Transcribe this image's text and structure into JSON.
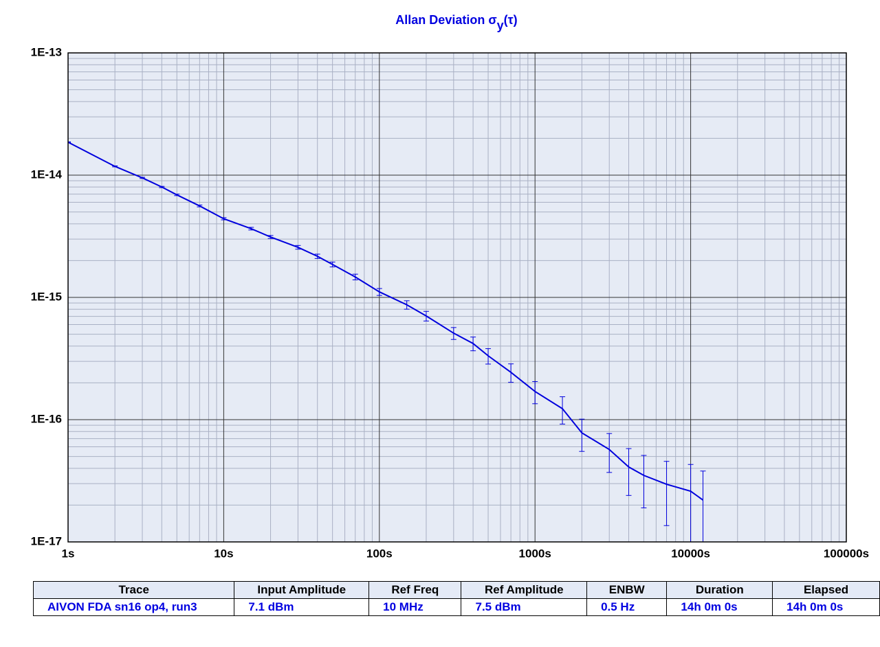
{
  "chart_data": {
    "type": "line",
    "title_parts": [
      "Allan Deviation σ",
      "y",
      "(τ)"
    ],
    "x": [
      1,
      2,
      3,
      4,
      5,
      7,
      10,
      15,
      20,
      30,
      40,
      50,
      70,
      100,
      150,
      200,
      300,
      400,
      500,
      700,
      1000,
      1500,
      2000,
      3000,
      4000,
      5000,
      7000,
      10000,
      12000
    ],
    "series": [
      {
        "color": "#0000dd",
        "values": [
          1.86e-14,
          1.18e-14,
          9.5e-15,
          8e-15,
          6.9e-15,
          5.6e-15,
          4.4e-15,
          3.65e-15,
          3.12e-15,
          2.57e-15,
          2.17e-15,
          1.86e-15,
          1.47e-15,
          1.11e-15,
          8.7e-16,
          7.05e-16,
          5.1e-16,
          4.2e-16,
          3.33e-16,
          2.44e-16,
          1.7e-16,
          1.23e-16,
          7.8e-17,
          5.7e-17,
          4.1e-17,
          3.5e-17,
          2.96e-17,
          2.6e-17,
          2.2e-17
        ],
        "errors": [
          1.2e-16,
          1.08e-16,
          1.06e-16,
          1.03e-16,
          1e-16,
          9.6e-17,
          9e-17,
          9.1e-17,
          9e-17,
          9.1e-17,
          8.9e-17,
          8.5e-17,
          7.9e-17,
          7.2e-17,
          6.9e-17,
          6.4e-17,
          5.7e-17,
          5.4e-17,
          4.8e-17,
          4.2e-17,
          3.5e-17,
          3.1e-17,
          2.3e-17,
          2e-17,
          1.7e-17,
          1.6e-17,
          1.6e-17,
          1.7e-17,
          1.6e-17
        ]
      }
    ],
    "xlim": [
      1,
      100000
    ],
    "ylim": [
      1e-17,
      1e-13
    ],
    "xticks": [
      {
        "value": 1,
        "label": "1s"
      },
      {
        "value": 10,
        "label": "10s"
      },
      {
        "value": 100,
        "label": "100s"
      },
      {
        "value": 1000,
        "label": "1000s"
      },
      {
        "value": 10000,
        "label": "10000s"
      },
      {
        "value": 100000,
        "label": "100000s"
      }
    ],
    "yticks": [
      {
        "value": 1e-17,
        "label": "1E-17"
      },
      {
        "value": 1e-16,
        "label": "1E-16"
      },
      {
        "value": 1e-15,
        "label": "1E-15"
      },
      {
        "value": 1e-14,
        "label": "1E-14"
      },
      {
        "value": 1e-13,
        "label": "1E-13"
      }
    ],
    "log_x": true,
    "log_y": true,
    "grid": true
  },
  "table": {
    "header": [
      "Trace",
      "Input Amplitude",
      "Ref Freq",
      "Ref Amplitude",
      "ENBW",
      "Duration",
      "Elapsed"
    ],
    "rows": [
      [
        "AIVON FDA sn16 op4, run3",
        "7.1 dBm",
        "10 MHz",
        "7.5 dBm",
        "0.5 Hz",
        "14h 0m 0s",
        "14h 0m 0s"
      ]
    ]
  }
}
